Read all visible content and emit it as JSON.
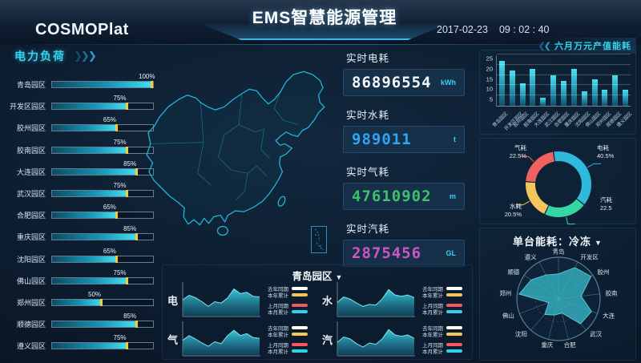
{
  "header": {
    "logo": "COSMOPlat",
    "title": "EMS智慧能源管理",
    "date": "2017-02-23",
    "time": "09 : 02 : 40"
  },
  "icons": {
    "dropdown": "▼",
    "chevron_right": "❯",
    "chevron_left": "❮"
  },
  "colors": {
    "accent": "#35d3ee",
    "bar_fill_end": "#3fe3f5",
    "bar_marker": "#f5c93e",
    "map_stroke": "#1fb6d8",
    "radar_fill": "#36b3c2"
  },
  "stats": [
    {
      "label": "实时电耗",
      "value": "86896554",
      "unit": "kWh",
      "color": "#f4f8fb"
    },
    {
      "label": "实时水耗",
      "value": "989011",
      "unit": "t",
      "color": "#2ea6f2"
    },
    {
      "label": "实时气耗",
      "value": "47610902",
      "unit": "m",
      "color": "#3ec06e"
    },
    {
      "label": "实时汽耗",
      "value": "2875456",
      "unit": "GL",
      "color": "#d153c8"
    }
  ],
  "chart_data": [
    {
      "name": "power_load",
      "type": "bar",
      "orientation": "horizontal",
      "title": "电力负荷",
      "unit": "%",
      "categories": [
        "青岛园区",
        "开发区园区",
        "胶州园区",
        "胶南园区",
        "大连园区",
        "武汉园区",
        "合肥园区",
        "重庆园区",
        "沈阳园区",
        "佛山园区",
        "郑州园区",
        "顺德园区",
        "遵义园区"
      ],
      "values": [
        100,
        75,
        65,
        75,
        85,
        75,
        65,
        85,
        65,
        75,
        50,
        85,
        75
      ]
    },
    {
      "name": "monthly_output_energy",
      "type": "bar",
      "title": "六月万元产值能耗",
      "categories": [
        "青岛园区",
        "开发区园区",
        "胶州园区",
        "胶南园区",
        "大连园区",
        "武汉园区",
        "合肥园区",
        "重庆园区",
        "沈阳园区",
        "佛山园区",
        "郑州园区",
        "顺德园区",
        "遵义园区"
      ],
      "values": [
        22,
        17,
        11,
        18,
        4,
        15,
        12,
        18,
        7,
        13,
        8,
        15,
        8
      ],
      "ylim": [
        0,
        25
      ],
      "yticks": [
        5,
        10,
        15,
        20,
        25
      ],
      "grid": true,
      "legend_position": "none"
    },
    {
      "name": "energy_share",
      "type": "pie",
      "slices": [
        {
          "label": "电耗",
          "pct_label": "40.5%",
          "value": 40.5,
          "color": "#2fb9dc"
        },
        {
          "label": "汽耗",
          "pct_label": "22.5",
          "value": 22.5,
          "color": "#35d6a5"
        },
        {
          "label": "水耗",
          "pct_label": "20.5%",
          "value": 20.5,
          "color": "#f3c65c"
        },
        {
          "label": "气耗",
          "pct_label": "22.5%",
          "value": 22.5,
          "color": "#f2605f"
        }
      ]
    },
    {
      "name": "unit_energy_radar",
      "type": "radar",
      "title": "单台能耗：冷冻",
      "scale": [
        0,
        1
      ],
      "categories": [
        "青岛",
        "开发区",
        "胶州",
        "胶南",
        "大连",
        "武汉",
        "合肥",
        "重庆",
        "沈阳",
        "佛山",
        "郑州",
        "顺德",
        "遵义"
      ],
      "values": [
        0.6,
        0.85,
        0.95,
        0.55,
        0.85,
        0.8,
        0.35,
        0.4,
        0.5,
        0.25,
        0.95,
        0.8,
        0.65
      ]
    },
    {
      "name": "park_trends",
      "type": "area",
      "title": "青岛园区",
      "legend": [
        {
          "label": "去年同期",
          "color": "#ffffff"
        },
        {
          "label": "本年累计",
          "color": "#f3c65c"
        },
        {
          "label": "上月同期",
          "color": "#f2595f"
        },
        {
          "label": "本月累计",
          "color": "#2fd0e8"
        }
      ],
      "charts": [
        {
          "label": "电",
          "points": [
            0.5,
            0.63,
            0.56,
            0.44,
            0.3,
            0.44,
            0.4,
            0.55,
            0.82,
            0.68,
            0.72,
            0.6,
            0.58
          ]
        },
        {
          "label": "水",
          "points": [
            0.42,
            0.58,
            0.52,
            0.4,
            0.3,
            0.36,
            0.34,
            0.52,
            0.8,
            0.64,
            0.6,
            0.64,
            0.56
          ]
        },
        {
          "label": "气",
          "points": [
            0.46,
            0.6,
            0.5,
            0.38,
            0.28,
            0.42,
            0.36,
            0.6,
            0.76,
            0.6,
            0.66,
            0.54,
            0.52
          ]
        },
        {
          "label": "汽",
          "points": [
            0.4,
            0.56,
            0.5,
            0.36,
            0.26,
            0.38,
            0.34,
            0.5,
            0.78,
            0.62,
            0.58,
            0.62,
            0.52
          ]
        }
      ]
    }
  ]
}
